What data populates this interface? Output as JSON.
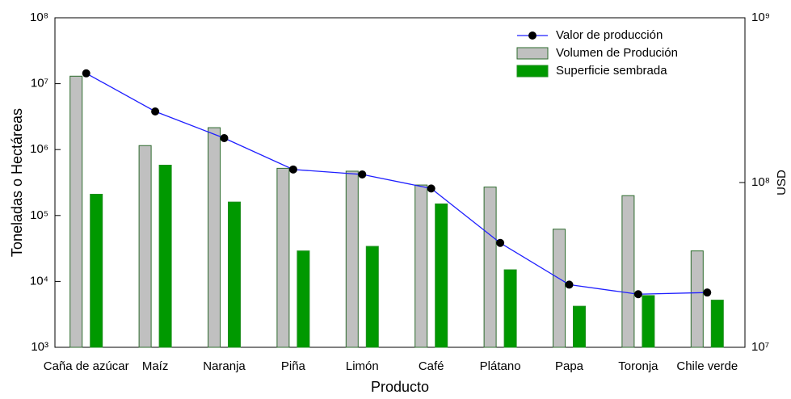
{
  "chart_data": {
    "type": "bar",
    "x_label": "Producto",
    "y_label": "Toneladas o Hectáreas",
    "y2_label": "USD",
    "categories": [
      "Caña de azúcar",
      "Maíz",
      "Naranja",
      "Piña",
      "Limón",
      "Café",
      "Plátano",
      "Papa",
      "Toronja",
      "Chile verde"
    ],
    "series": [
      {
        "name": "Valor de producción",
        "type": "line",
        "axis": "y2",
        "color": "#1f1fff",
        "values": [
          460000000,
          270000000,
          186000000,
          120000000,
          112000000,
          92000000,
          43000000,
          24000000,
          21000000,
          21500000
        ]
      },
      {
        "name": "Volumen de Produción",
        "type": "bar",
        "color": "#c0c0c0",
        "edge": "#2e6b2e",
        "values": [
          13000000,
          1150000,
          2150000,
          520000,
          470000,
          290000,
          270000,
          62000,
          200000,
          29000
        ]
      },
      {
        "name": "Superficie sembrada",
        "type": "bar",
        "color": "#009900",
        "edge": "#1f8f1f",
        "values": [
          210000,
          580000,
          160000,
          29000,
          34000,
          150000,
          15000,
          4200,
          6100,
          5200
        ]
      }
    ],
    "log_scale": true,
    "ylim": [
      1000,
      100000000
    ],
    "yticks": [
      {
        "value": 1000,
        "label": "10³"
      },
      {
        "value": 10000,
        "label": "10⁴"
      },
      {
        "value": 100000,
        "label": "10⁵"
      },
      {
        "value": 1000000,
        "label": "10⁶"
      },
      {
        "value": 10000000,
        "label": "10⁷"
      },
      {
        "value": 100000000,
        "label": "10⁸"
      }
    ],
    "y2lim": [
      10000000,
      1000000000
    ],
    "y2ticks": [
      {
        "value": 10000000,
        "label": "10⁷"
      },
      {
        "value": 100000000,
        "label": "10⁸"
      },
      {
        "value": 1000000000,
        "label": "10⁹"
      }
    ],
    "legend": "top-right"
  }
}
